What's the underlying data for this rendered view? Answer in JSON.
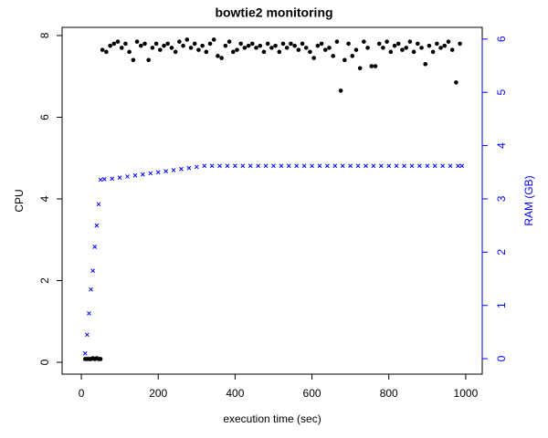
{
  "chart_data": {
    "type": "scatter",
    "title": "bowtie2 monitoring",
    "x_label": "execution time (sec)",
    "y_label": "CPU",
    "y2_label": "RAM (GB)",
    "xlim": [
      -50,
      1043
    ],
    "ylim": [
      -0.29,
      8.2
    ],
    "y2lim": [
      -0.29,
      6.22
    ],
    "xticks": [
      0,
      200,
      400,
      600,
      800,
      1000
    ],
    "yticks": [
      0,
      2,
      4,
      6,
      8
    ],
    "y2ticks": [
      0,
      1,
      2,
      3,
      4,
      5,
      6
    ],
    "series": [
      {
        "name": "CPU",
        "color": "#000000",
        "marker": "circle",
        "axis": "y",
        "x": [
          10,
          15,
          20,
          25,
          30,
          35,
          40,
          45,
          50,
          55,
          65,
          75,
          85,
          95,
          105,
          115,
          125,
          135,
          145,
          155,
          165,
          175,
          185,
          195,
          205,
          215,
          225,
          235,
          245,
          255,
          265,
          275,
          285,
          295,
          305,
          315,
          325,
          335,
          345,
          355,
          365,
          375,
          385,
          395,
          405,
          415,
          425,
          435,
          445,
          455,
          465,
          475,
          485,
          495,
          505,
          515,
          525,
          535,
          545,
          555,
          565,
          575,
          585,
          595,
          605,
          615,
          625,
          635,
          645,
          655,
          665,
          675,
          685,
          695,
          705,
          715,
          725,
          735,
          745,
          755,
          765,
          775,
          785,
          795,
          805,
          815,
          825,
          835,
          845,
          855,
          865,
          875,
          885,
          895,
          905,
          915,
          925,
          935,
          945,
          955,
          965,
          975,
          985
        ],
        "values": [
          0.08,
          0.08,
          0.08,
          0.08,
          0.1,
          0.08,
          0.1,
          0.08,
          0.08,
          7.65,
          7.6,
          7.75,
          7.8,
          7.85,
          7.7,
          7.8,
          7.6,
          7.4,
          7.85,
          7.75,
          7.8,
          7.4,
          7.7,
          7.8,
          7.65,
          7.75,
          7.8,
          7.7,
          7.6,
          7.85,
          7.75,
          7.9,
          7.7,
          7.8,
          7.65,
          7.75,
          7.6,
          7.8,
          7.9,
          7.5,
          7.45,
          7.75,
          7.85,
          7.6,
          7.65,
          7.8,
          7.7,
          7.75,
          7.8,
          7.7,
          7.75,
          7.6,
          7.8,
          7.7,
          7.75,
          7.6,
          7.8,
          7.7,
          7.8,
          7.75,
          7.65,
          7.8,
          7.7,
          7.6,
          7.45,
          7.75,
          7.8,
          7.65,
          7.7,
          7.5,
          7.85,
          6.65,
          7.4,
          7.8,
          7.5,
          7.65,
          7.2,
          7.85,
          7.7,
          7.25,
          7.25,
          7.8,
          7.7,
          7.85,
          7.6,
          7.75,
          7.8,
          7.65,
          7.7,
          7.85,
          7.6,
          7.8,
          7.7,
          7.3,
          7.75,
          7.6,
          7.8,
          7.7,
          7.75,
          7.85,
          7.65,
          6.85,
          7.8
        ]
      },
      {
        "name": "RAM",
        "color": "#0000ff",
        "marker": "x",
        "axis": "y2",
        "x": [
          10,
          15,
          20,
          25,
          30,
          35,
          40,
          45,
          50,
          60,
          80,
          100,
          120,
          140,
          160,
          180,
          200,
          220,
          240,
          260,
          280,
          300,
          320,
          340,
          360,
          380,
          400,
          420,
          440,
          460,
          480,
          500,
          520,
          540,
          560,
          580,
          600,
          620,
          640,
          660,
          680,
          700,
          720,
          740,
          760,
          780,
          800,
          820,
          840,
          860,
          880,
          900,
          920,
          940,
          960,
          980,
          990
        ],
        "values": [
          0.1,
          0.45,
          0.85,
          1.3,
          1.65,
          2.1,
          2.5,
          2.9,
          3.36,
          3.37,
          3.38,
          3.4,
          3.42,
          3.44,
          3.46,
          3.48,
          3.5,
          3.52,
          3.54,
          3.56,
          3.58,
          3.6,
          3.62,
          3.62,
          3.62,
          3.62,
          3.62,
          3.62,
          3.62,
          3.62,
          3.62,
          3.62,
          3.62,
          3.62,
          3.62,
          3.62,
          3.62,
          3.62,
          3.62,
          3.62,
          3.62,
          3.62,
          3.62,
          3.62,
          3.62,
          3.62,
          3.62,
          3.62,
          3.62,
          3.62,
          3.62,
          3.62,
          3.62,
          3.62,
          3.62,
          3.62,
          3.62
        ]
      }
    ]
  }
}
